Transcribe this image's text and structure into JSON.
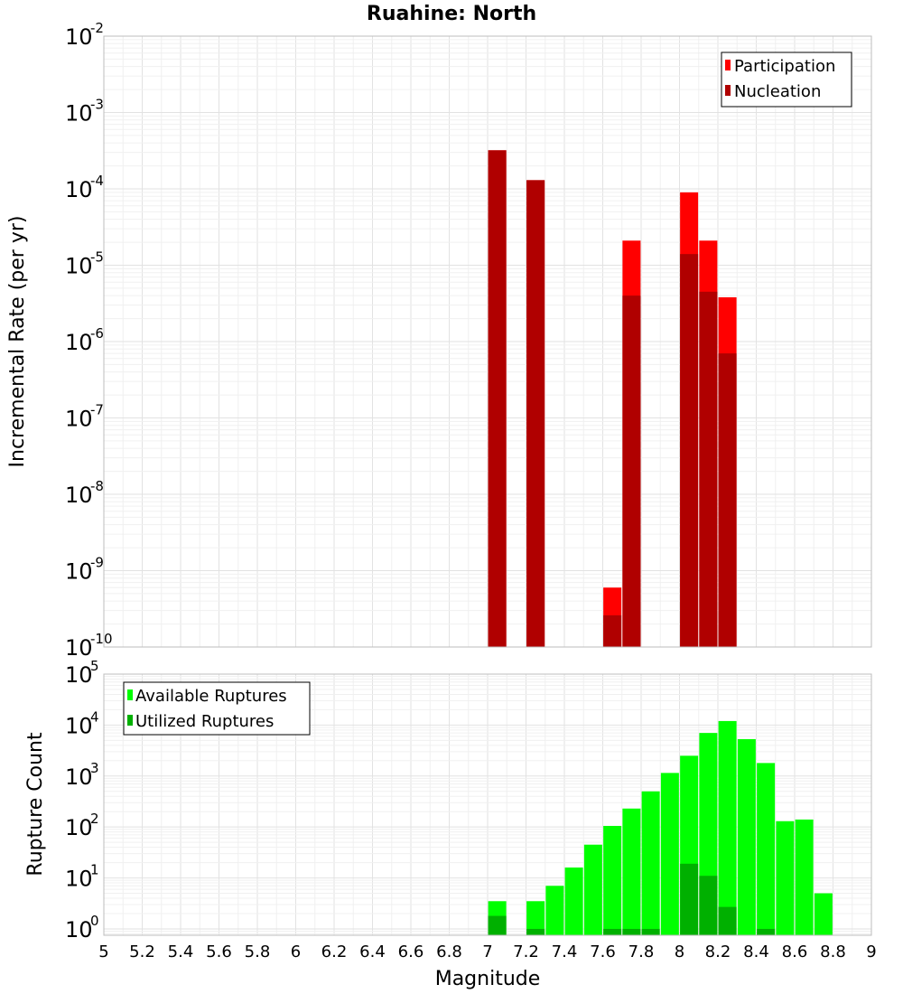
{
  "figure": {
    "title": "Ruahine: North",
    "xlabel": "Magnitude"
  },
  "chart_data": [
    {
      "type": "bar",
      "name": "rate-panel",
      "title": "Ruahine: North",
      "ylabel": "Incremental Rate (per yr)",
      "yscale": "log",
      "ylim": [
        1e-10,
        0.01
      ],
      "xlim": [
        5,
        9
      ],
      "ytick_exponents": [
        -10,
        -9,
        -8,
        -7,
        -6,
        -5,
        -4,
        -3,
        -2
      ],
      "legend_position": "top-right",
      "series": [
        {
          "name": "Participation",
          "color": "#ff0000",
          "x": [
            7.05,
            7.25,
            7.65,
            7.75,
            8.05,
            8.15,
            8.25
          ],
          "values": [
            0.00032,
            0.00013,
            6e-10,
            2.1e-05,
            9e-05,
            2.1e-05,
            3.8e-06
          ]
        },
        {
          "name": "Nucleation",
          "color": "#b00000",
          "x": [
            7.05,
            7.25,
            7.65,
            7.75,
            8.05,
            8.15,
            8.25
          ],
          "values": [
            0.00032,
            0.00013,
            2.6e-10,
            4e-06,
            1.4e-05,
            4.5e-06,
            7e-07
          ]
        }
      ]
    },
    {
      "type": "bar",
      "name": "count-panel",
      "ylabel": "Rupture Count",
      "xlabel": "Magnitude",
      "yscale": "log",
      "ylim": [
        0.75,
        100000.0
      ],
      "xlim": [
        5,
        9
      ],
      "ytick_exponents": [
        0,
        1,
        2,
        3,
        4,
        5
      ],
      "xticks": [
        5,
        5.2,
        5.4,
        5.6,
        5.8,
        6,
        6.2,
        6.4,
        6.6,
        6.8,
        7,
        7.2,
        7.4,
        7.6,
        7.8,
        8,
        8.2,
        8.4,
        8.6,
        8.8,
        9
      ],
      "xtick_labels": [
        "5",
        "5.2",
        "5.4",
        "5.6",
        "5.8",
        "6",
        "6.2",
        "6.4",
        "6.6",
        "6.8",
        "7",
        "7.2",
        "7.4",
        "7.6",
        "7.8",
        "8",
        "8.2",
        "8.4",
        "8.6",
        "8.8",
        "9"
      ],
      "legend_position": "top-left",
      "series": [
        {
          "name": "Available Ruptures",
          "color": "#00ff00",
          "x": [
            7.05,
            7.25,
            7.35,
            7.45,
            7.55,
            7.65,
            7.75,
            7.85,
            7.95,
            8.05,
            8.15,
            8.25,
            8.35,
            8.45,
            8.55,
            8.65,
            8.75
          ],
          "values": [
            3.5,
            3.5,
            7,
            16,
            45,
            105,
            230,
            500,
            1150,
            2500,
            7000,
            12000,
            5300,
            1800,
            130,
            140,
            5
          ]
        },
        {
          "name": "Utilized Ruptures",
          "color": "#00b000",
          "x": [
            7.05,
            7.25,
            7.65,
            7.75,
            7.85,
            8.05,
            8.15,
            8.25,
            8.45
          ],
          "values": [
            1.8,
            1,
            1,
            1,
            1,
            19,
            11,
            2.7,
            1
          ]
        }
      ]
    }
  ]
}
